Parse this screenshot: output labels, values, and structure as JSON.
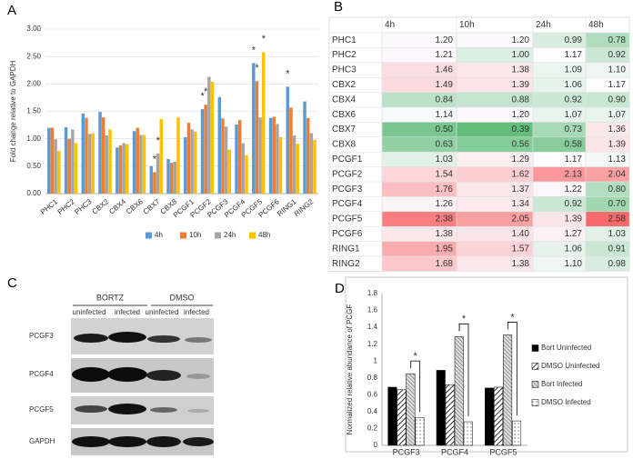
{
  "chart_data": [
    {
      "panel": "A",
      "type": "bar",
      "ylabel": "Fold change relative to GAPDH",
      "categories": [
        "PHC1",
        "PHC2",
        "PHC3",
        "CBX2",
        "CBX4",
        "CBX6",
        "CBX7",
        "CBX8",
        "PCGF1",
        "PCGF2",
        "PCGF3",
        "PCGF4",
        "PCGF5",
        "PCGF6",
        "RING1",
        "RING2"
      ],
      "series": [
        {
          "name": "4h",
          "color": "#5b9bd5",
          "values": [
            1.2,
            1.21,
            1.46,
            1.49,
            0.84,
            1.14,
            0.5,
            0.63,
            1.03,
            1.54,
            1.76,
            1.26,
            2.38,
            1.38,
            1.95,
            1.68
          ]
        },
        {
          "name": "10h",
          "color": "#ed7d31",
          "values": [
            1.2,
            1.0,
            1.38,
            1.39,
            0.88,
            1.2,
            0.39,
            0.56,
            1.29,
            1.62,
            1.37,
            1.34,
            2.05,
            1.4,
            1.57,
            1.38
          ]
        },
        {
          "name": "24h",
          "color": "#a5a5a5",
          "values": [
            0.99,
            1.17,
            1.09,
            1.06,
            0.92,
            1.07,
            0.73,
            0.58,
            1.17,
            2.13,
            1.22,
            0.92,
            1.39,
            1.27,
            1.06,
            1.1
          ]
        },
        {
          "name": "48h",
          "color": "#ffc000",
          "values": [
            0.78,
            0.92,
            1.1,
            1.17,
            0.9,
            1.07,
            1.36,
            1.39,
            1.13,
            2.04,
            0.8,
            0.7,
            2.58,
            1.03,
            0.91,
            0.98
          ]
        }
      ],
      "ylim": [
        0,
        3
      ],
      "yticks": [
        {
          "value": 0,
          "label": "0.00"
        },
        {
          "value": 0.5,
          "label": "0.50"
        },
        {
          "value": 1,
          "label": "1.00"
        },
        {
          "value": 1.5,
          "label": "1.50"
        },
        {
          "value": 2,
          "label": "2.00"
        },
        {
          "value": 2.5,
          "label": "2.50"
        },
        {
          "value": 3,
          "label": "3.00"
        }
      ],
      "grid": true,
      "legend": "bottom",
      "annotations": [
        {
          "text": "*",
          "category": "CBX7",
          "series": "10h"
        },
        {
          "text": "*",
          "category": "CBX7",
          "series": "24h"
        },
        {
          "text": "*",
          "category": "PCGF2",
          "series": "4h"
        },
        {
          "text": "*",
          "category": "PCGF2",
          "series": "10h"
        },
        {
          "text": "*",
          "category": "PCGF5",
          "series": "4h"
        },
        {
          "text": "*",
          "category": "PCGF5",
          "series": "10h"
        },
        {
          "text": "*",
          "category": "PCGF5",
          "series": "48h"
        },
        {
          "text": "*",
          "category": "RING1",
          "series": "4h"
        }
      ]
    },
    {
      "panel": "B",
      "type": "heatmap",
      "x_categories": [
        "4h",
        "10h",
        "24h",
        "48h"
      ],
      "y_categories": [
        "PHC1",
        "PHC2",
        "PHC3",
        "CBX2",
        "CBX4",
        "CBX6",
        "CBX7",
        "CBX8",
        "PCGF1",
        "PCGF2",
        "PCGF3",
        "PCGF4",
        "PCGF5",
        "PCGF6",
        "RING1",
        "RING2"
      ],
      "values": [
        [
          1.2,
          1.2,
          0.99,
          0.78
        ],
        [
          1.21,
          1.0,
          1.17,
          0.92
        ],
        [
          1.46,
          1.38,
          1.09,
          1.1
        ],
        [
          1.49,
          1.39,
          1.06,
          1.17
        ],
        [
          0.84,
          0.88,
          0.92,
          0.9
        ],
        [
          1.14,
          1.2,
          1.07,
          1.07
        ],
        [
          0.5,
          0.39,
          0.73,
          1.36
        ],
        [
          0.63,
          0.56,
          0.58,
          1.39
        ],
        [
          1.03,
          1.29,
          1.17,
          1.13
        ],
        [
          1.54,
          1.62,
          2.13,
          2.04
        ],
        [
          1.76,
          1.37,
          1.22,
          0.8
        ],
        [
          1.26,
          1.34,
          0.92,
          0.7
        ],
        [
          2.38,
          2.05,
          1.39,
          2.58
        ],
        [
          1.38,
          1.4,
          1.27,
          1.03
        ],
        [
          1.95,
          1.57,
          1.06,
          0.91
        ],
        [
          1.68,
          1.38,
          1.1,
          0.98
        ]
      ],
      "value_labels": [
        [
          "1.20",
          "1.20",
          "0.99",
          "0.78"
        ],
        [
          "1.21",
          "1.00",
          "1.17",
          "0.92"
        ],
        [
          "1.46",
          "1.38",
          "1.09",
          "1.10"
        ],
        [
          "1.49",
          "1.39",
          "1.06",
          "1.17"
        ],
        [
          "0.84",
          "0.88",
          "0.92",
          "0.90"
        ],
        [
          "1.14",
          "1.20",
          "1.07",
          "1.07"
        ],
        [
          "0.50",
          "0.39",
          "0.73",
          "1.36"
        ],
        [
          "0.63",
          "0.56",
          "0.58",
          "1.39"
        ],
        [
          "1.03",
          "1.29",
          "1.17",
          "1.13"
        ],
        [
          "1.54",
          "1.62",
          "2.13",
          "2.04"
        ],
        [
          "1.76",
          "1.37",
          "1.22",
          "0.80"
        ],
        [
          "1.26",
          "1.34",
          "0.92",
          "0.70"
        ],
        [
          "2.38",
          "2.05",
          "1.39",
          "2.58"
        ],
        [
          "1.38",
          "1.40",
          "1.27",
          "1.03"
        ],
        [
          "1.95",
          "1.57",
          "1.06",
          "0.91"
        ],
        [
          "1.68",
          "1.38",
          "1.10",
          "0.98"
        ]
      ],
      "color_scale": {
        "low": "#63be7b",
        "mid": "#fcfcff",
        "high": "#f8696b"
      }
    },
    {
      "panel": "D",
      "type": "bar",
      "ylabel": "Normalized relative abundance of PCGF",
      "categories": [
        "PCGF3",
        "PCGF4",
        "PCGF5"
      ],
      "series": [
        {
          "name": "Bort Uninfected",
          "color": "#000000",
          "pattern": "solid",
          "values": [
            0.69,
            0.89,
            0.68
          ]
        },
        {
          "name": "DMSO Uninfected",
          "color": "#000000",
          "pattern": "diagonal",
          "values": [
            0.66,
            0.72,
            0.69
          ]
        },
        {
          "name": "Bort Infected",
          "color": "#555555",
          "pattern": "crosshatch",
          "values": [
            0.85,
            1.29,
            1.31
          ]
        },
        {
          "name": "DMSO Infected",
          "color": "#333333",
          "pattern": "dots",
          "values": [
            0.33,
            0.28,
            0.29
          ]
        }
      ],
      "ylim": [
        0,
        1.8
      ],
      "yticks": [
        0,
        0.2,
        0.4,
        0.6,
        0.8,
        1,
        1.2,
        1.4,
        1.6,
        1.8
      ],
      "grid": false,
      "legend": "right",
      "annotations": [
        {
          "text": "*",
          "category": "PCGF3",
          "between": [
            "Bort Infected",
            "DMSO Infected"
          ]
        },
        {
          "text": "*",
          "category": "PCGF4",
          "between": [
            "Bort Infected",
            "DMSO Infected"
          ]
        },
        {
          "text": "*",
          "category": "PCGF5",
          "between": [
            "Bort Infected",
            "DMSO Infected"
          ]
        }
      ]
    }
  ],
  "blot": {
    "panel": "C",
    "groups": [
      "BORTZ",
      "DMSO"
    ],
    "lanes": [
      "uninfected",
      "infected",
      "uninfected",
      "infected"
    ],
    "rows": [
      "PCGF3",
      "PCGF4",
      "PCGF5",
      "GAPDH"
    ]
  }
}
